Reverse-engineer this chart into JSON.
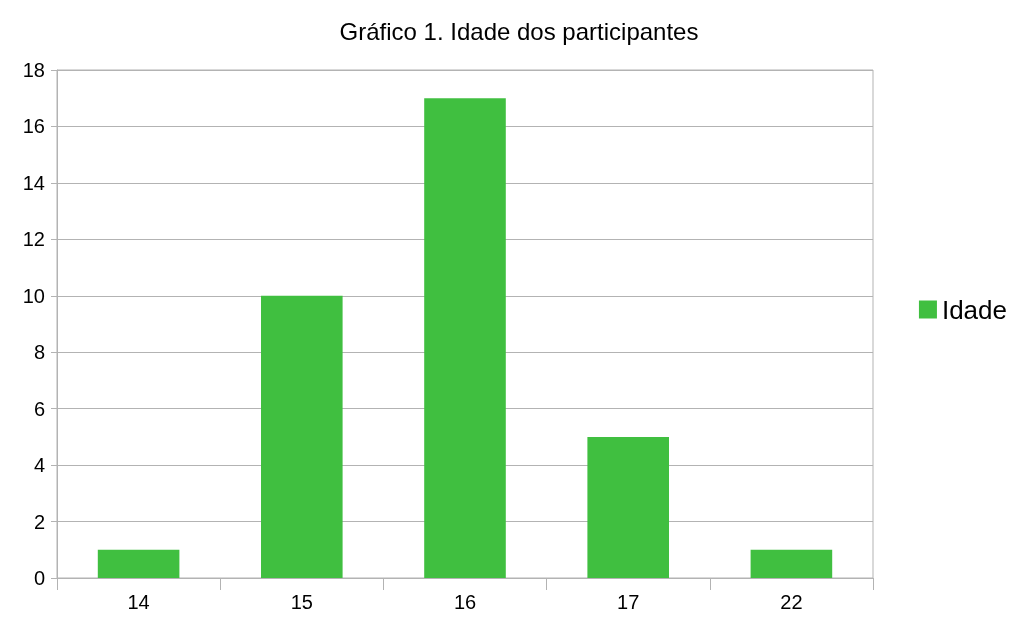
{
  "chart_data": {
    "type": "bar",
    "title": "Gráfico 1. Idade dos participantes",
    "categories": [
      "14",
      "15",
      "16",
      "17",
      "22"
    ],
    "series": [
      {
        "name": "Idade",
        "color": "#40bf40",
        "values": [
          1,
          10,
          17,
          5,
          1
        ]
      }
    ],
    "ylim": [
      0,
      18
    ],
    "yticks": [
      0,
      2,
      4,
      6,
      8,
      10,
      12,
      14,
      16,
      18
    ],
    "grid": "y",
    "legend": "right"
  }
}
